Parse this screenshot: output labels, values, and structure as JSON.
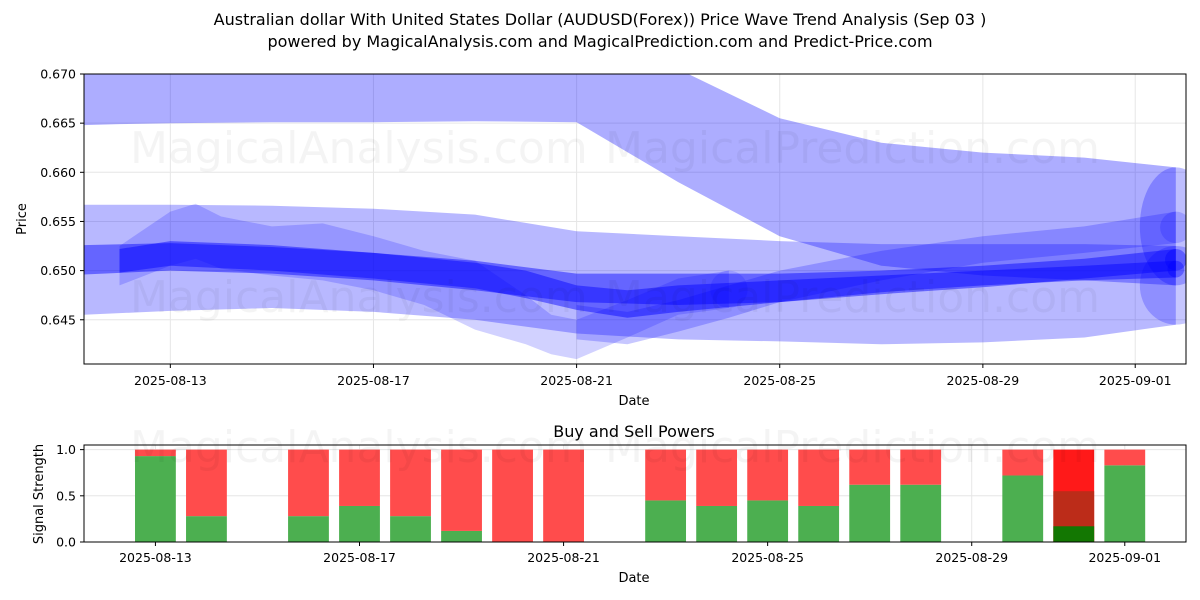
{
  "title_line1": "Australian dollar With United States Dollar (AUDUSD(Forex)) Price Wave Trend Analysis (Sep 03 )",
  "title_line2": "powered by MagicalAnalysis.com and MagicalPrediction.com and Predict-Price.com",
  "watermarks": [
    "MagicalAnalysis.com",
    "MagicalPrediction.com"
  ],
  "colors": {
    "wave": "#0000ff",
    "buy": "#4caf50",
    "sell": "#ff4c4c",
    "buy_strong": "#008000",
    "sell_strong": "#ff0000"
  },
  "chart_data": [
    {
      "type": "area",
      "title": "",
      "xlabel": "Date",
      "ylabel": "Price",
      "x_start": "2025-08-12",
      "xlim_days": [
        -0.7,
        21.0
      ],
      "ylim": [
        0.6405,
        0.67
      ],
      "yticks": [
        "0.645",
        "0.650",
        "0.655",
        "0.660",
        "0.665",
        "0.670"
      ],
      "ytick_values": [
        0.645,
        0.65,
        0.655,
        0.66,
        0.665,
        0.67
      ],
      "xticks": [
        "2025-08-13",
        "2025-08-17",
        "2025-08-21",
        "2025-08-25",
        "2025-08-29",
        "2025-09-01"
      ],
      "xtick_days": [
        1,
        5,
        9,
        13,
        17,
        20
      ],
      "grid": true,
      "bands": [
        {
          "name": "upper wave",
          "x": [
            -0.7,
            0,
            1,
            3,
            5,
            7,
            9,
            11,
            13,
            15,
            17,
            19,
            20.8
          ],
          "upper": [
            0.6705,
            0.6705,
            0.6705,
            0.6705,
            0.6705,
            0.6705,
            0.6705,
            0.6705,
            0.6655,
            0.663,
            0.662,
            0.6615,
            0.6605
          ],
          "lower": [
            0.6648,
            0.6649,
            0.665,
            0.6651,
            0.6651,
            0.6652,
            0.6651,
            0.659,
            0.6535,
            0.6505,
            0.6495,
            0.649,
            0.6485
          ]
        },
        {
          "name": "wide envelope",
          "x": [
            -0.7,
            1,
            3,
            5,
            7,
            9,
            11,
            13,
            15,
            17,
            19,
            20.8
          ],
          "upper": [
            0.6567,
            0.6567,
            0.6566,
            0.6563,
            0.6557,
            0.654,
            0.6535,
            0.653,
            0.6527,
            0.6527,
            0.6527,
            0.6525
          ],
          "lower": [
            0.6455,
            0.6459,
            0.6462,
            0.6458,
            0.645,
            0.6436,
            0.643,
            0.6428,
            0.6425,
            0.6427,
            0.6432,
            0.6445
          ]
        },
        {
          "name": "dense core A",
          "x": [
            -0.7,
            1,
            3,
            5,
            7,
            9,
            11,
            13,
            15,
            17,
            19,
            20.8
          ],
          "upper": [
            0.6526,
            0.6528,
            0.6524,
            0.6518,
            0.651,
            0.6497,
            0.6497,
            0.6497,
            0.65,
            0.6505,
            0.6512,
            0.6522
          ],
          "lower": [
            0.6496,
            0.65,
            0.6497,
            0.649,
            0.648,
            0.6468,
            0.6465,
            0.6468,
            0.6476,
            0.6483,
            0.6492,
            0.65
          ]
        },
        {
          "name": "dense core B",
          "x": [
            0,
            1,
            3,
            5,
            7,
            8,
            9,
            10,
            11,
            13,
            15,
            17,
            19,
            20.8
          ],
          "upper": [
            0.6522,
            0.653,
            0.6526,
            0.6518,
            0.6508,
            0.65,
            0.6485,
            0.648,
            0.6485,
            0.649,
            0.6495,
            0.65,
            0.6505,
            0.651
          ],
          "lower": [
            0.6498,
            0.6505,
            0.65,
            0.6492,
            0.6482,
            0.6472,
            0.646,
            0.6452,
            0.6458,
            0.6468,
            0.6478,
            0.6485,
            0.649,
            0.6493
          ]
        },
        {
          "name": "rising arm",
          "x": [
            9,
            10,
            11,
            12,
            13,
            15,
            17,
            19,
            20.8
          ],
          "upper": [
            0.6465,
            0.6458,
            0.647,
            0.6485,
            0.65,
            0.652,
            0.6535,
            0.6545,
            0.656
          ],
          "lower": [
            0.643,
            0.6425,
            0.6438,
            0.6452,
            0.6468,
            0.649,
            0.6508,
            0.6518,
            0.6528
          ]
        },
        {
          "name": "swing wave",
          "x": [
            0,
            1,
            1.5,
            2,
            3,
            4,
            5,
            6,
            7,
            8,
            8.5,
            9,
            10,
            11,
            12
          ],
          "upper": [
            0.6525,
            0.656,
            0.6568,
            0.6555,
            0.6545,
            0.6548,
            0.6535,
            0.652,
            0.651,
            0.6475,
            0.6455,
            0.645,
            0.647,
            0.6492,
            0.65
          ],
          "lower": [
            0.6485,
            0.6505,
            0.6512,
            0.6502,
            0.6495,
            0.649,
            0.648,
            0.6465,
            0.644,
            0.6425,
            0.6415,
            0.641,
            0.6432,
            0.6455,
            0.6462
          ]
        }
      ]
    },
    {
      "type": "bar",
      "title": "Buy and Sell Powers",
      "xlabel": "Date",
      "ylabel": "Signal Strength",
      "x_start": "2025-08-12",
      "xlim_days": [
        -0.4,
        21.2
      ],
      "ylim": [
        0,
        1.05
      ],
      "yticks": [
        "0.0",
        "0.5",
        "1.0"
      ],
      "ytick_values": [
        0,
        0.5,
        1.0
      ],
      "xticks": [
        "2025-08-13",
        "2025-08-17",
        "2025-08-21",
        "2025-08-25",
        "2025-08-29",
        "2025-09-01"
      ],
      "xtick_days": [
        1,
        5,
        9,
        13,
        17,
        20
      ],
      "grid": true,
      "bars": [
        {
          "date": "2025-08-13",
          "day": 1,
          "buy": 0.93,
          "sell": 0.07
        },
        {
          "date": "2025-08-14",
          "day": 2,
          "buy": 0.28,
          "sell": 0.72
        },
        {
          "date": "2025-08-16",
          "day": 4,
          "buy": 0.28,
          "sell": 0.72
        },
        {
          "date": "2025-08-17",
          "day": 5,
          "buy": 0.39,
          "sell": 0.61
        },
        {
          "date": "2025-08-18",
          "day": 6,
          "buy": 0.28,
          "sell": 0.72
        },
        {
          "date": "2025-08-19",
          "day": 7,
          "buy": 0.12,
          "sell": 0.88
        },
        {
          "date": "2025-08-20",
          "day": 8,
          "buy": 0.0,
          "sell": 1.0
        },
        {
          "date": "2025-08-21",
          "day": 9,
          "buy": 0.0,
          "sell": 1.0
        },
        {
          "date": "2025-08-23",
          "day": 11,
          "buy": 0.45,
          "sell": 0.55
        },
        {
          "date": "2025-08-24",
          "day": 12,
          "buy": 0.39,
          "sell": 0.61
        },
        {
          "date": "2025-08-25",
          "day": 13,
          "buy": 0.45,
          "sell": 0.55
        },
        {
          "date": "2025-08-26",
          "day": 14,
          "buy": 0.39,
          "sell": 0.61
        },
        {
          "date": "2025-08-27",
          "day": 15,
          "buy": 0.62,
          "sell": 0.38
        },
        {
          "date": "2025-08-28",
          "day": 16,
          "buy": 0.62,
          "sell": 0.38
        },
        {
          "date": "2025-08-30",
          "day": 18,
          "buy": 0.72,
          "sell": 0.28
        },
        {
          "date": "2025-08-31",
          "day": 19,
          "buy": 0.17,
          "sell": 0.83,
          "highlight": true
        },
        {
          "date": "2025-09-01",
          "day": 20,
          "buy": 0.83,
          "sell": 0.17
        }
      ]
    }
  ]
}
